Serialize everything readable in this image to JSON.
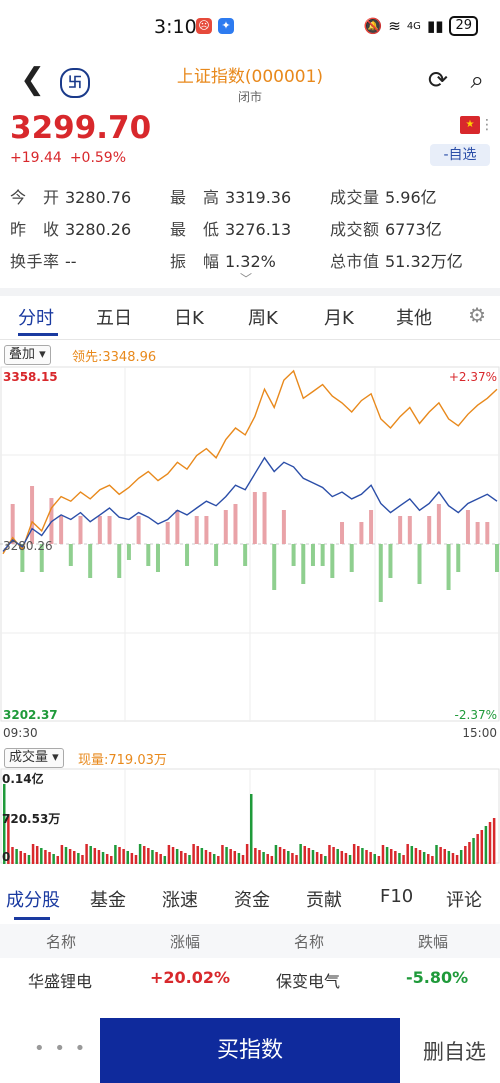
{
  "status": {
    "time": "3:10",
    "battery": "29",
    "signal": "4G"
  },
  "header": {
    "title": "上证指数(000001)",
    "subtitle": "闭市"
  },
  "quote": {
    "price": "3299.70",
    "change": "+19.44",
    "change_pct": "+0.59%",
    "watch_label": "-自选"
  },
  "stats": [
    {
      "key": "今　开",
      "value": "3280.76"
    },
    {
      "key": "最　高",
      "value": "3319.36"
    },
    {
      "key": "成交量",
      "value": "5.96亿"
    },
    {
      "key": "昨　收",
      "value": "3280.26"
    },
    {
      "key": "最　低",
      "value": "3276.13"
    },
    {
      "key": "成交额",
      "value": "6773亿"
    },
    {
      "key": "换手率",
      "value": "--"
    },
    {
      "key": "振　幅",
      "value": "1.32%"
    },
    {
      "key": "总市值",
      "value": "51.32万亿"
    }
  ],
  "tabs": [
    "分时",
    "五日",
    "日K",
    "周K",
    "月K",
    "其他"
  ],
  "chart_controls": {
    "overlay": "叠加",
    "leader": "领先:3348.96",
    "volume": "成交量",
    "current_vol": "现量:719.03万"
  },
  "chart_data": {
    "type": "line",
    "y_max_label": "3358.15",
    "y_mid_label": "3280.26",
    "y_min_label": "3202.37",
    "pct_max_label": "+2.37%",
    "pct_min_label": "-2.37%",
    "x_start": "09:30",
    "x_end": "15:00",
    "ylim": [
      3202.37,
      3358.15
    ],
    "baseline": 3280.26,
    "series": [
      {
        "values": [
          3276,
          3283,
          3278,
          3290,
          3286,
          3296,
          3301,
          3299,
          3303,
          3300,
          3304,
          3306,
          3302,
          3305,
          3309,
          3312,
          3308,
          3311,
          3316,
          3313,
          3319,
          3322,
          3318,
          3326,
          3331,
          3328,
          3336,
          3348,
          3340,
          3352,
          3356,
          3344,
          3347,
          3350,
          3345,
          3342,
          3338,
          3343,
          3346,
          3335,
          3331,
          3336,
          3340,
          3333,
          3338,
          3342,
          3335,
          3332,
          3337,
          3341,
          3344,
          3348
        ]
      },
      {
        "values": [
          3277,
          3282,
          3279,
          3287,
          3284,
          3290,
          3293,
          3291,
          3294,
          3290,
          3293,
          3296,
          3292,
          3291,
          3294,
          3292,
          3289,
          3291,
          3295,
          3293,
          3296,
          3299,
          3297,
          3301,
          3306,
          3304,
          3311,
          3318,
          3312,
          3316,
          3314,
          3309,
          3307,
          3305,
          3301,
          3303,
          3300,
          3302,
          3306,
          3298,
          3294,
          3297,
          3300,
          3295,
          3298,
          3303,
          3297,
          3294,
          3298,
          3300,
          3302,
          3299
        ]
      }
    ],
    "volume": {
      "ylabel_top": "0.14亿",
      "ylabel_mid": "720.53万",
      "ylabel_bottom": "0"
    }
  },
  "stock_tabs": [
    "成分股",
    "基金",
    "涨速",
    "资金",
    "贡献",
    "F10",
    "评论"
  ],
  "stock_table": {
    "headers": [
      "名称",
      "涨幅",
      "名称",
      "跌幅"
    ],
    "row": [
      "华盛锂电",
      "+20.02%",
      "保变电气",
      "-5.80%"
    ]
  },
  "footer": {
    "more": "• • •",
    "buy": "买指数",
    "delete": "删自选"
  },
  "colors": {
    "up": "#d8282c",
    "down": "#1f9a3a",
    "accent": "#1a3aa0",
    "leader": "#e8891c",
    "index": "#2b4ea8"
  }
}
